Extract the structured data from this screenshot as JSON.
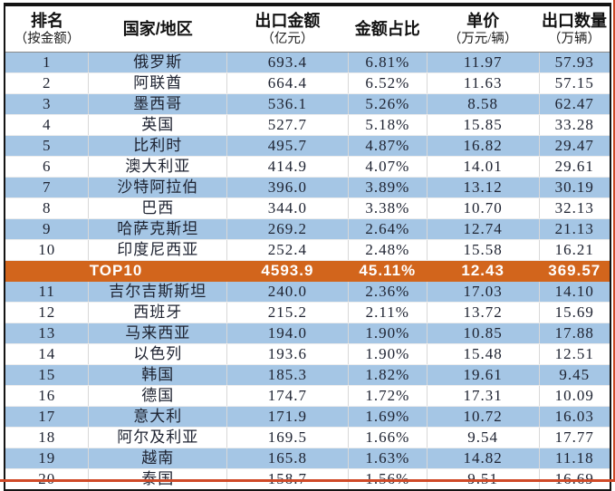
{
  "chart_data": {
    "type": "table",
    "columns": [
      {
        "title": "排名",
        "subtitle": "（按金额）"
      },
      {
        "title": "国家/地区",
        "subtitle": ""
      },
      {
        "title": "出口金额",
        "subtitle": "（亿元）"
      },
      {
        "title": "金额占比",
        "subtitle": ""
      },
      {
        "title": "单价",
        "subtitle": "（万元/辆）"
      },
      {
        "title": "出口数量",
        "subtitle": "（万辆）"
      }
    ],
    "rows": [
      {
        "rank": "1",
        "country": "俄罗斯",
        "amount": "693.4",
        "share": "6.81%",
        "price": "11.97",
        "qty": "57.93"
      },
      {
        "rank": "2",
        "country": "阿联酋",
        "amount": "664.4",
        "share": "6.52%",
        "price": "11.63",
        "qty": "57.15"
      },
      {
        "rank": "3",
        "country": "墨西哥",
        "amount": "536.1",
        "share": "5.26%",
        "price": "8.58",
        "qty": "62.47"
      },
      {
        "rank": "4",
        "country": "英国",
        "amount": "527.7",
        "share": "5.18%",
        "price": "15.85",
        "qty": "33.28"
      },
      {
        "rank": "5",
        "country": "比利时",
        "amount": "495.7",
        "share": "4.87%",
        "price": "16.82",
        "qty": "29.47"
      },
      {
        "rank": "6",
        "country": "澳大利亚",
        "amount": "414.9",
        "share": "4.07%",
        "price": "14.01",
        "qty": "29.61"
      },
      {
        "rank": "7",
        "country": "沙特阿拉伯",
        "amount": "396.0",
        "share": "3.89%",
        "price": "13.12",
        "qty": "30.19"
      },
      {
        "rank": "8",
        "country": "巴西",
        "amount": "344.0",
        "share": "3.38%",
        "price": "10.70",
        "qty": "32.13"
      },
      {
        "rank": "9",
        "country": "哈萨克斯坦",
        "amount": "269.2",
        "share": "2.64%",
        "price": "12.74",
        "qty": "21.13"
      },
      {
        "rank": "10",
        "country": "印度尼西亚",
        "amount": "252.4",
        "share": "2.48%",
        "price": "15.58",
        "qty": "16.21"
      },
      {
        "summary": true,
        "label": "TOP10",
        "amount": "4593.9",
        "share": "45.11%",
        "price": "12.43",
        "qty": "369.57"
      },
      {
        "rank": "11",
        "country": "吉尔吉斯斯坦",
        "amount": "240.0",
        "share": "2.36%",
        "price": "17.03",
        "qty": "14.10"
      },
      {
        "rank": "12",
        "country": "西班牙",
        "amount": "215.2",
        "share": "2.11%",
        "price": "13.72",
        "qty": "15.69"
      },
      {
        "rank": "13",
        "country": "马来西亚",
        "amount": "194.0",
        "share": "1.90%",
        "price": "10.85",
        "qty": "17.88"
      },
      {
        "rank": "14",
        "country": "以色列",
        "amount": "193.6",
        "share": "1.90%",
        "price": "15.48",
        "qty": "12.51"
      },
      {
        "rank": "15",
        "country": "韩国",
        "amount": "185.3",
        "share": "1.82%",
        "price": "19.61",
        "qty": "9.45"
      },
      {
        "rank": "16",
        "country": "德国",
        "amount": "174.7",
        "share": "1.72%",
        "price": "17.31",
        "qty": "10.09"
      },
      {
        "rank": "17",
        "country": "意大利",
        "amount": "171.9",
        "share": "1.69%",
        "price": "10.72",
        "qty": "16.03"
      },
      {
        "rank": "18",
        "country": "阿尔及利亚",
        "amount": "169.5",
        "share": "1.66%",
        "price": "9.54",
        "qty": "17.77"
      },
      {
        "rank": "19",
        "country": "越南",
        "amount": "165.8",
        "share": "1.63%",
        "price": "14.82",
        "qty": "11.18"
      },
      {
        "rank": "20",
        "country": "泰国",
        "amount": "158.7",
        "share": "1.56%",
        "price": "9.51",
        "qty": "16.69"
      }
    ],
    "colors": {
      "band_blue": "#a5c6e5",
      "summary_orange": "#d2651c",
      "frame_black": "#141414",
      "edge_red": "#d04a28",
      "text_dark": "#1d2230"
    },
    "layout": {
      "grid": "on",
      "banding": "alternating blue/white",
      "summary_row_position": "after rank 10"
    }
  }
}
